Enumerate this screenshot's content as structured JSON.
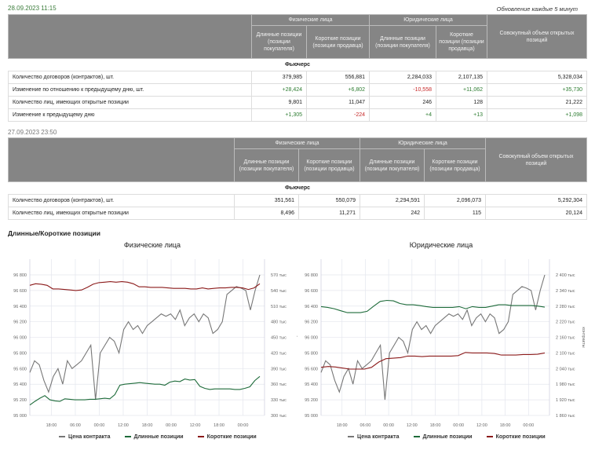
{
  "table1": {
    "date": "28.09.2023 11:15",
    "update_note": "Обновление каждые 5 минут",
    "group_phys": "Физические лица",
    "group_jur": "Юридические лица",
    "col_long": "Длинные позиции (позиции покупателя)",
    "col_short": "Короткие позиции (позиции продавца)",
    "col_total": "Совокупный объем открытых позиций",
    "section": "Фьючерс",
    "rows": [
      {
        "label": "Количество договоров (контрактов), шт.",
        "values": [
          "379,985",
          "556,881",
          "2,284,033",
          "2,107,135",
          "5,328,034"
        ]
      },
      {
        "label": "Изменение по отношению к предыдущему дню, шт.",
        "values": [
          "+28,424",
          "+6,802",
          "-10,558",
          "+11,062",
          "+35,730"
        ]
      },
      {
        "label": "Количество лиц, имеющих открытые позиции",
        "values": [
          "9,801",
          "11,047",
          "246",
          "128",
          "21,222"
        ]
      },
      {
        "label": "Изменение к предыдущему дню",
        "values": [
          "+1,305",
          "-224",
          "+4",
          "+13",
          "+1,098"
        ]
      }
    ]
  },
  "table2": {
    "date": "27.09.2023 23:50",
    "group_phys": "Физические лица",
    "group_jur": "Юридические лица",
    "col_long": "Длинные позиции (позиции покупателя)",
    "col_short": "Короткие позиции (позиции продавца)",
    "col_total": "Совокупный объем открытых позиций",
    "section": "Фьючерс",
    "rows": [
      {
        "label": "Количество договоров (контрактов), шт.",
        "values": [
          "351,561",
          "550,079",
          "2,294,591",
          "2,096,073",
          "5,292,304"
        ]
      },
      {
        "label": "Количество лиц, имеющих открытые позиции",
        "values": [
          "8,496",
          "11,271",
          "242",
          "115",
          "20,124"
        ]
      }
    ]
  },
  "charts_heading": "Длинные/Короткие позиции",
  "colors": {
    "price": "#777777",
    "long": "#1e6b3a",
    "short": "#8b1a1a"
  },
  "chart_data": [
    {
      "type": "line",
      "title": "Физические лица",
      "ylabel_right": "контракты",
      "x_ticks": [
        "18:00",
        "06:00",
        "00:00",
        "12:00",
        "18:00",
        "00:00",
        "12:00",
        "18:00",
        "00:00"
      ],
      "y_left": {
        "min": 95000,
        "max": 96800,
        "step": 200,
        "ticks": [
          "95 000",
          "95 200",
          "95 400",
          "95 600",
          "95 800",
          "96 000",
          "96 200",
          "96 400",
          "96 600",
          "96 800"
        ]
      },
      "y_right": {
        "min": 300,
        "max": 570,
        "ticks": [
          "300 тыс",
          "330 тыс",
          "360 тыс",
          "390 тыс",
          "420 тыс",
          "450 тыс",
          "480 тыс",
          "510 тыс",
          "540 тыс",
          "570 тыс"
        ]
      },
      "series": [
        {
          "name": "Цена контракта",
          "axis": "left",
          "values": [
            95550,
            95700,
            95650,
            95450,
            95300,
            95500,
            95600,
            95400,
            95700,
            95600,
            95650,
            95700,
            95800,
            95900,
            95200,
            95800,
            95900,
            96000,
            95950,
            95800,
            96100,
            96200,
            96100,
            96150,
            96050,
            96150,
            96200,
            96250,
            96300,
            96270,
            96300,
            96230,
            96350,
            96150,
            96250,
            96300,
            96200,
            96300,
            96250,
            96050,
            96100,
            96200,
            96550,
            96600,
            96650,
            96630,
            96600,
            96350,
            96600,
            96800
          ]
        },
        {
          "name": "Длинные позиции",
          "axis": "right",
          "values": [
            320,
            327,
            333,
            338,
            330,
            328,
            327,
            332,
            331,
            330,
            330,
            330,
            331,
            331,
            332,
            333,
            332,
            340,
            358,
            360,
            361,
            362,
            363,
            362,
            361,
            360,
            360,
            358,
            364,
            366,
            365,
            370,
            368,
            369,
            356,
            352,
            350,
            351,
            351,
            351,
            351,
            350,
            350,
            352,
            355,
            367,
            375
          ]
        },
        {
          "name": "Короткие позиции",
          "axis": "right",
          "values": [
            550,
            553,
            552,
            550,
            543,
            543,
            542,
            541,
            540,
            541,
            546,
            552,
            555,
            556,
            557,
            556,
            557,
            556,
            553,
            547,
            547,
            546,
            546,
            546,
            545,
            544,
            544,
            544,
            543,
            543,
            545,
            543,
            544,
            545,
            545,
            546,
            546,
            545,
            542,
            545,
            553
          ]
        }
      ]
    },
    {
      "type": "line",
      "title": "Юридические лица",
      "ylabel_right": "контракты",
      "x_ticks": [
        "18:00",
        "06:00",
        "00:00",
        "12:00",
        "18:00",
        "00:00",
        "12:00",
        "18:00",
        "00:00"
      ],
      "y_left": {
        "min": 95000,
        "max": 96800,
        "step": 200,
        "ticks": [
          "95 000",
          "95 200",
          "95 400",
          "95 600",
          "95 800",
          "96 000",
          "96 200",
          "96 400",
          "96 600",
          "96 800"
        ]
      },
      "y_right": {
        "min": 1860,
        "max": 2400,
        "ticks": [
          "1 860 тыс",
          "1 920 тыс",
          "1 980 тыс",
          "2 040 тыс",
          "2 100 тыс",
          "2 160 тыс",
          "2 220 тыс",
          "2 280 тыс",
          "2 340 тыс",
          "2 400 тыс"
        ]
      },
      "series": [
        {
          "name": "Цена контракта",
          "axis": "left",
          "values": [
            95550,
            95700,
            95650,
            95450,
            95300,
            95500,
            95600,
            95400,
            95700,
            95600,
            95650,
            95700,
            95800,
            95900,
            95200,
            95800,
            95900,
            96000,
            95950,
            95800,
            96100,
            96200,
            96100,
            96150,
            96050,
            96150,
            96200,
            96250,
            96300,
            96270,
            96300,
            96230,
            96350,
            96150,
            96250,
            96300,
            96200,
            96300,
            96250,
            96050,
            96100,
            96200,
            96550,
            96600,
            96650,
            96630,
            96600,
            96350,
            96600,
            96800
          ]
        },
        {
          "name": "Длинные позиции",
          "axis": "right",
          "values": [
            2278,
            2275,
            2270,
            2262,
            2255,
            2255,
            2255,
            2260,
            2280,
            2298,
            2302,
            2300,
            2290,
            2285,
            2285,
            2282,
            2278,
            2275,
            2275,
            2275,
            2275,
            2278,
            2270,
            2278,
            2275,
            2275,
            2280,
            2285,
            2285,
            2282,
            2282,
            2282,
            2282,
            2280,
            2276
          ]
        },
        {
          "name": "Короткие позиции",
          "axis": "right",
          "values": [
            2045,
            2048,
            2046,
            2042,
            2038,
            2038,
            2038,
            2045,
            2065,
            2078,
            2080,
            2082,
            2088,
            2088,
            2086,
            2088,
            2088,
            2088,
            2088,
            2090,
            2102,
            2100,
            2100,
            2100,
            2098,
            2092,
            2092,
            2092,
            2094,
            2094,
            2095,
            2100
          ]
        }
      ]
    }
  ]
}
